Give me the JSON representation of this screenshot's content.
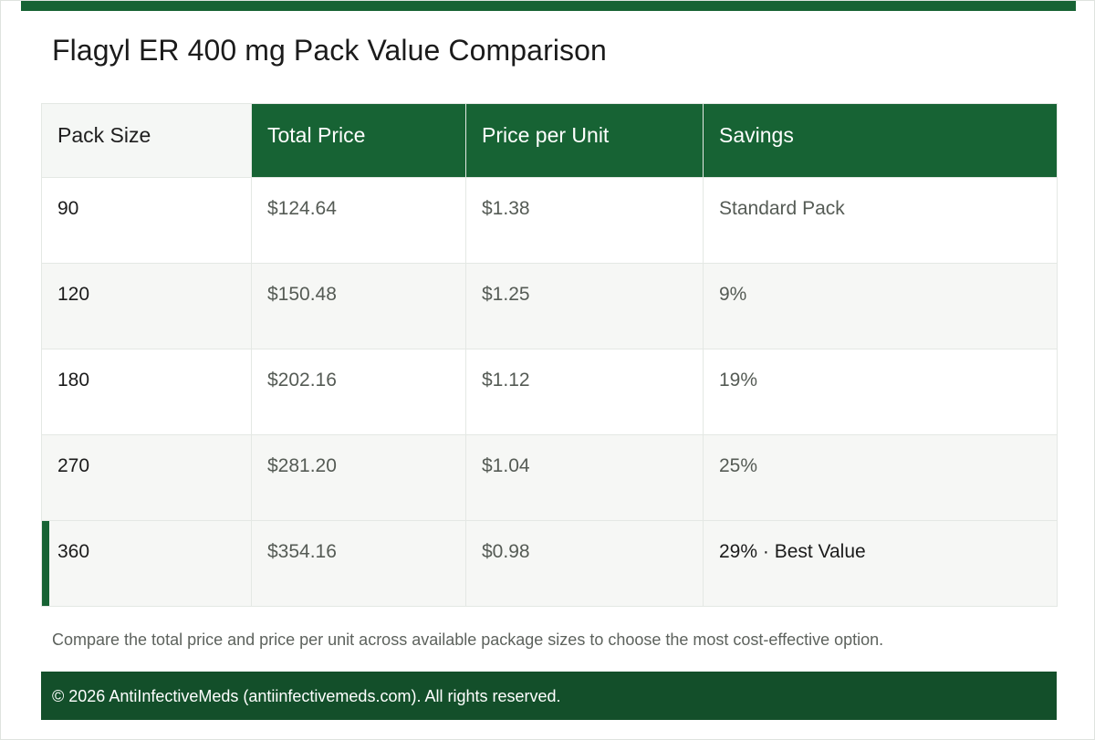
{
  "page": {
    "title": "Flagyl ER 400 mg Pack Value Comparison",
    "colors": {
      "accent": "#176334",
      "footer": "#134f2a",
      "alt_row": "#f6f7f5"
    }
  },
  "table": {
    "headers": [
      "Pack Size",
      "Total Price",
      "Price per Unit",
      "Savings"
    ],
    "rows": [
      {
        "pack_size": "90",
        "total_price": "$124.64",
        "price_per_unit": "$1.38",
        "savings": "Standard Pack"
      },
      {
        "pack_size": "120",
        "total_price": "$150.48",
        "price_per_unit": "$1.25",
        "savings": "9%"
      },
      {
        "pack_size": "180",
        "total_price": "$202.16",
        "price_per_unit": "$1.12",
        "savings": "19%"
      },
      {
        "pack_size": "270",
        "total_price": "$281.20",
        "price_per_unit": "$1.04",
        "savings": "25%"
      },
      {
        "pack_size": "360",
        "total_price": "$354.16",
        "price_per_unit": "$0.98",
        "savings": "29% · Best Value"
      }
    ]
  },
  "note": "Compare the total price and price per unit across available package sizes to choose the most cost-effective option.",
  "footer": {
    "text": "© 2026 AntiInfectiveMeds (antiinfectivemeds.com). All rights reserved."
  }
}
